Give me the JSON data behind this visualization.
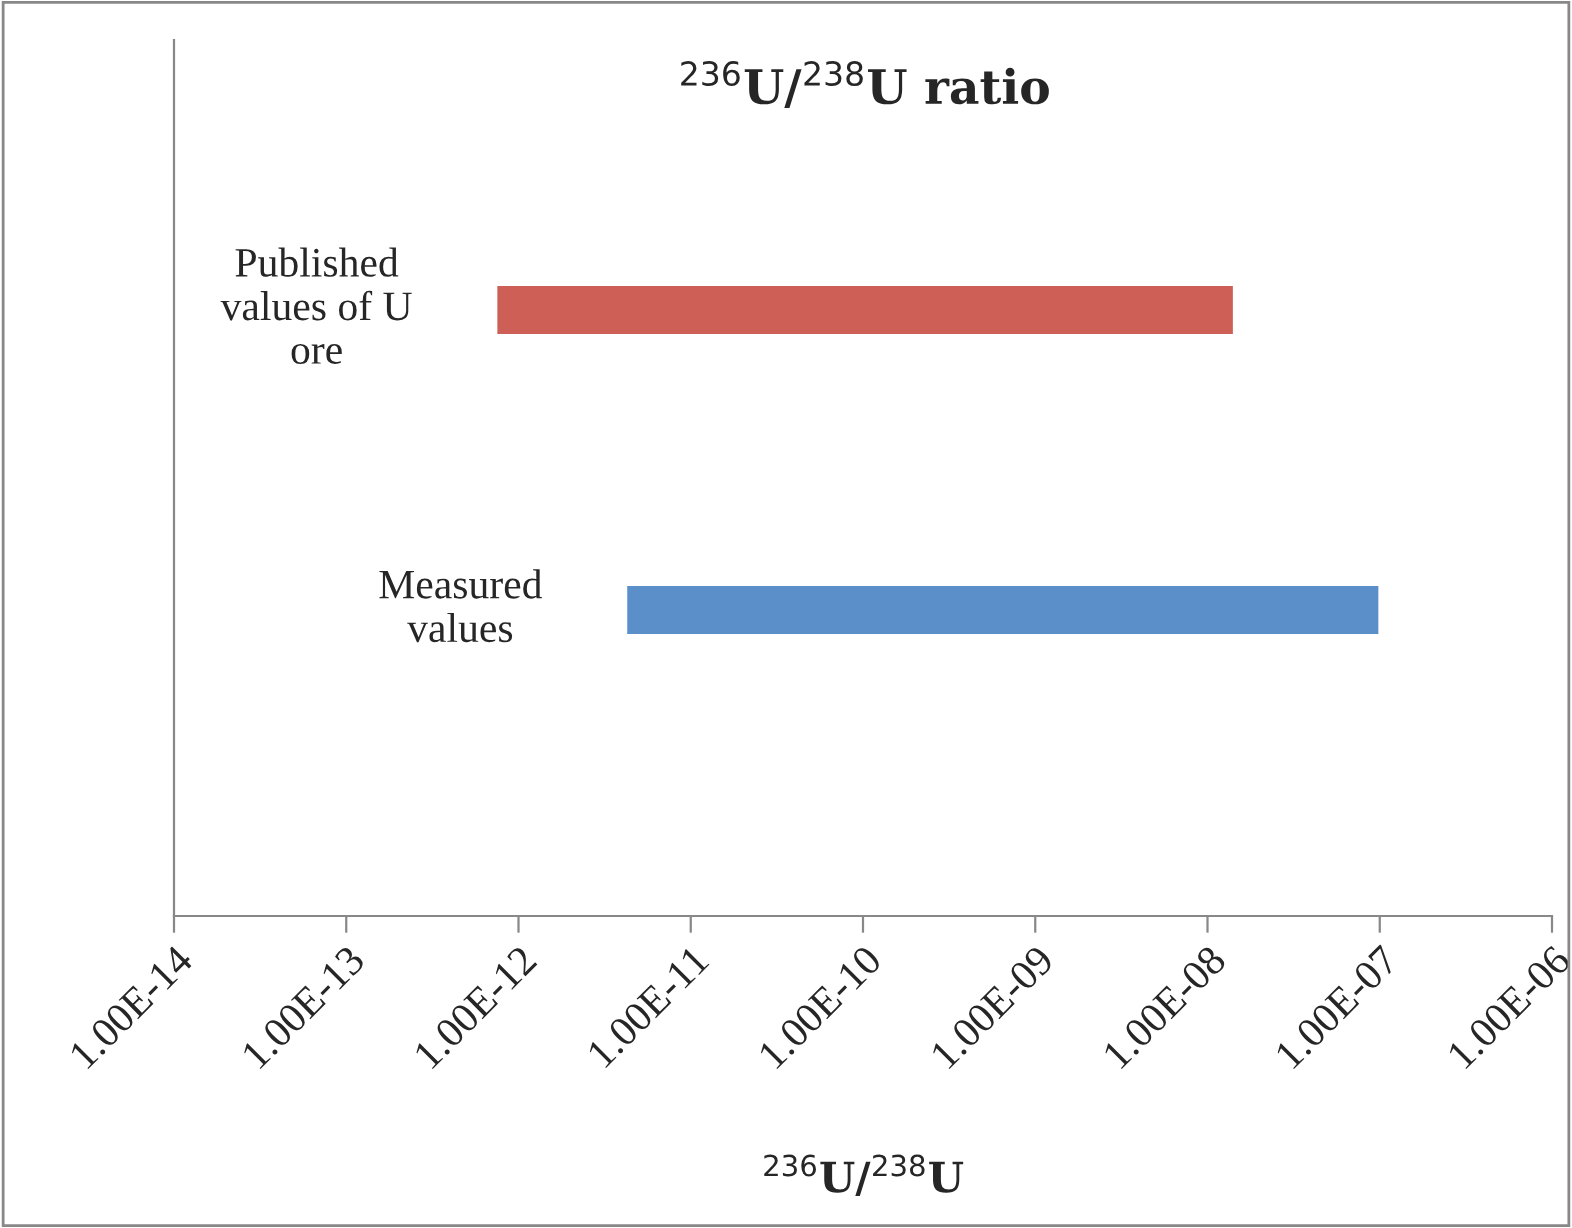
{
  "chart_data": {
    "type": "bar",
    "orientation": "horizontal",
    "log": "x",
    "title": "$^{236}$U/$^{238}$U ratio",
    "xlabel": "$^{236}$U/$^{238}$U",
    "categories": [
      "Published\nvalues of U\nore",
      "Measured\nvalues"
    ],
    "base": [
      7.4e-13,
      4.2e-12
    ],
    "values": [
      1.43e-08,
      1e-07
    ],
    "colors": [
      "#cd5f57",
      "#5b8fc9"
    ],
    "xlim": [
      1e-14,
      1e-06
    ],
    "xticks": [
      {
        "value": 1e-14,
        "label": "1.00E-14"
      },
      {
        "value": 1e-13,
        "label": "1.00E-13"
      },
      {
        "value": 1e-12,
        "label": "1.00E-12"
      },
      {
        "value": 1e-11,
        "label": "1.00E-11"
      },
      {
        "value": 1e-10,
        "label": "1.00E-10"
      },
      {
        "value": 1e-09,
        "label": "1.00E-09"
      },
      {
        "value": 1e-08,
        "label": "1.00E-08"
      },
      {
        "value": 1e-07,
        "label": "1.00E-07"
      },
      {
        "value": 1e-06,
        "label": "1.00E-06"
      }
    ],
    "grid": false
  }
}
